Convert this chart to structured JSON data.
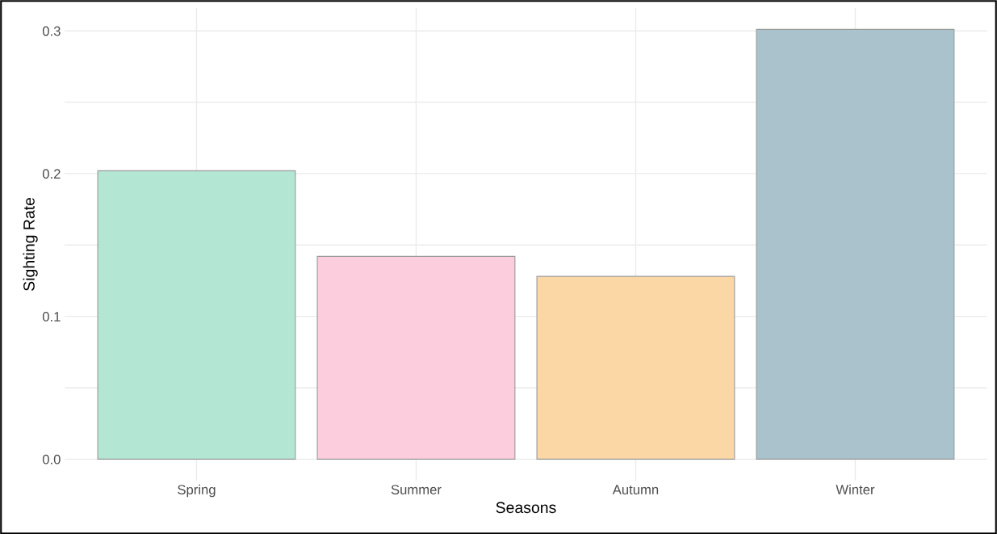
{
  "chart_data": {
    "type": "bar",
    "xlabel": "Seasons",
    "ylabel": "Sighting Rate",
    "categories": [
      "Spring",
      "Summer",
      "Autumn",
      "Winter"
    ],
    "values": [
      0.202,
      0.142,
      0.128,
      0.301
    ],
    "colors": [
      "#b3e6d3",
      "#fccddc",
      "#fad7a4",
      "#aac2cc"
    ],
    "ylim": [
      -0.015,
      0.316
    ],
    "yticks": [
      {
        "value": 0.0,
        "label": "0.0"
      },
      {
        "value": 0.05,
        "label": null
      },
      {
        "value": 0.1,
        "label": "0.1"
      },
      {
        "value": 0.15,
        "label": null
      },
      {
        "value": 0.2,
        "label": "0.2"
      },
      {
        "value": 0.25,
        "label": null
      },
      {
        "value": 0.3,
        "label": "0.3"
      }
    ],
    "grid": true
  }
}
